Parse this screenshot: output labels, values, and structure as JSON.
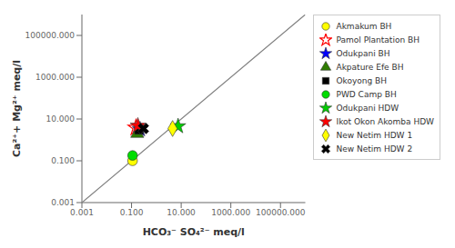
{
  "chart_data": {
    "type": "scatter",
    "xlabel": "HCO₃⁻  SO₄²⁻  meq/l",
    "ylabel": "Ca²⁺+ Mg²⁺ meq/l",
    "log": true,
    "grid": false,
    "legend": "right",
    "xlim": [
      0.001,
      1000000
    ],
    "ylim": [
      0.001,
      1000000
    ],
    "xticks": [
      0.001,
      {
        "value": 0.1,
        "label": "0.100"
      },
      {
        "value": 10,
        "label": "10.000"
      },
      {
        "value": 1000,
        "label": "1000.000"
      },
      {
        "value": 100000,
        "label": "100000.000"
      }
    ],
    "yticks": [
      0.001,
      {
        "value": 0.1,
        "label": "0.100"
      },
      {
        "value": 10,
        "label": "10.000"
      },
      {
        "value": 1000,
        "label": "1000.000"
      },
      {
        "value": 100000,
        "label": "100000.000"
      }
    ],
    "series": [
      {
        "type": "line",
        "color": "gray",
        "x": [
          0.001,
          1000000
        ],
        "values": [
          0.001,
          1000000
        ]
      },
      {
        "name": "Akmakum BH",
        "color": "yellow",
        "marker": "circle",
        "x": [
          0.11
        ],
        "values": [
          0.1
        ]
      },
      {
        "name": "Pamol Plantation BH",
        "color": "red",
        "marker": "star-open",
        "x": [
          0.15
        ],
        "values": [
          3.8
        ]
      },
      {
        "name": "Odukpani BH",
        "color": "blue",
        "marker": "star",
        "x": [
          0.22
        ],
        "values": [
          3.2
        ]
      },
      {
        "name": "Akpature Efe BH",
        "color": "#2e7d00",
        "marker": "triangle",
        "x": [
          0.17
        ],
        "values": [
          2.0
        ]
      },
      {
        "name": "Okoyong BH",
        "color": "black",
        "marker": "square",
        "x": [
          0.2
        ],
        "values": [
          3.0
        ]
      },
      {
        "name": "PWD Camp BH",
        "color": "#00dd00",
        "marker": "circle",
        "x": [
          0.11
        ],
        "values": [
          0.18
        ]
      },
      {
        "name": "Odukpani HDW",
        "color": "#00cc00",
        "marker": "star",
        "x": [
          7.5
        ],
        "values": [
          4.5
        ]
      },
      {
        "name": "Ikot Okon Akomba HDW",
        "color": "red",
        "marker": "star",
        "x": [
          0.18
        ],
        "values": [
          4.8
        ]
      },
      {
        "name": "New Netim HDW 1",
        "color": "yellow",
        "marker": "diamond",
        "x": [
          4.5
        ],
        "values": [
          3.5
        ]
      },
      {
        "name": "New Netim HDW 2",
        "color": "black",
        "marker": "x",
        "x": [
          0.3
        ],
        "values": [
          3.5
        ]
      }
    ]
  }
}
